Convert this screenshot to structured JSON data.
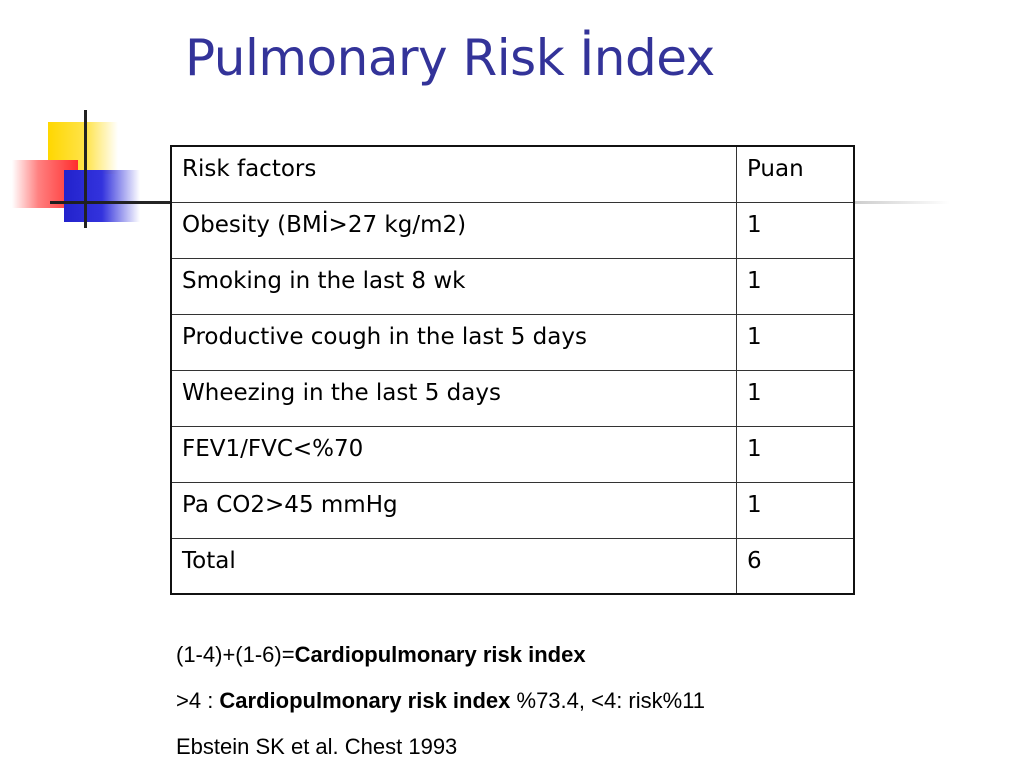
{
  "title": "Pulmonary Risk İndex",
  "table": {
    "headers": [
      "Risk factors",
      "Puan"
    ],
    "rows": [
      [
        "Obesity (BMİ>27 kg/m2)",
        "1"
      ],
      [
        "Smoking in the last 8 wk",
        "1"
      ],
      [
        "Productive cough in the last 5 days",
        "1"
      ],
      [
        "Wheezing in the last 5 days",
        "1"
      ],
      [
        "FEV1/FVC<%70",
        "1"
      ],
      [
        "Pa CO2>45 mmHg",
        "1"
      ],
      [
        "Total",
        "6"
      ]
    ]
  },
  "notes": {
    "line1_prefix": "(1-4)+(1-6)=",
    "line1_bold": "Cardiopulmonary risk index",
    "line2_prefix": ">4 : ",
    "line2_bold": "Cardiopulmonary risk index",
    "line2_suffix": " %73.4, <4: risk%11",
    "line3": "Ebstein SK et al. Chest 1993"
  },
  "colors": {
    "title": "#333399",
    "deco_yellow": "#ffd700",
    "deco_red": "#ff2d2d",
    "deco_blue": "#2222cc"
  }
}
